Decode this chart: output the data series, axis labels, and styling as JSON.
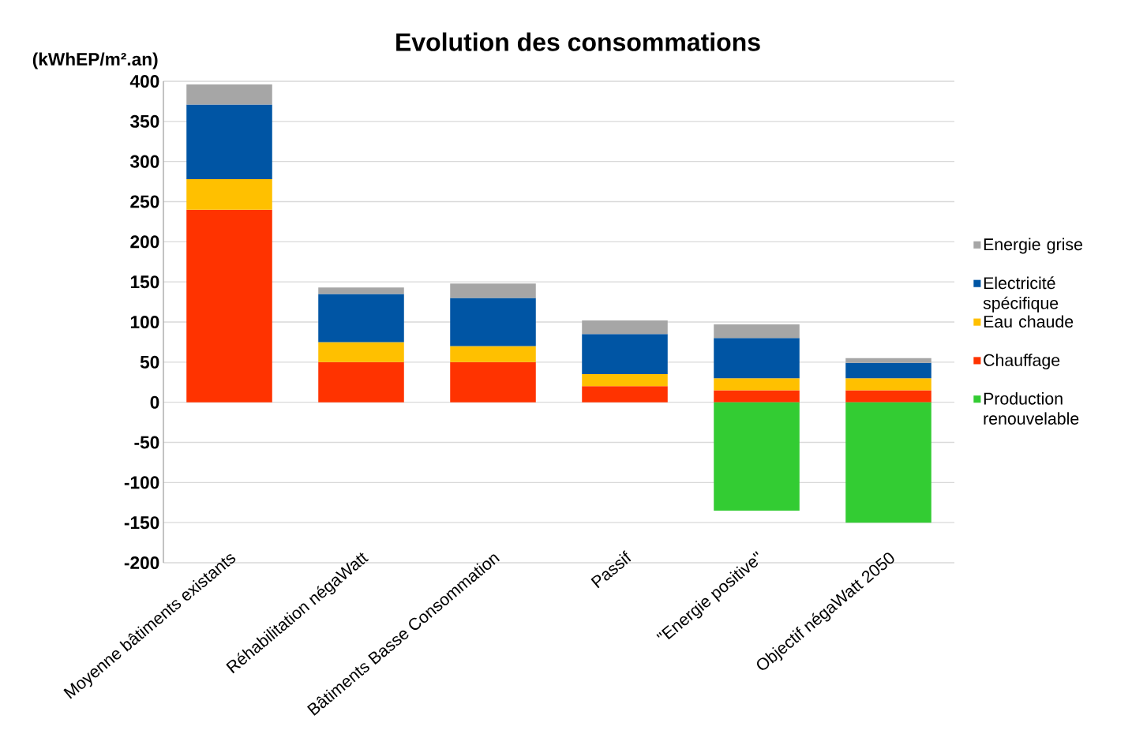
{
  "chart_data": {
    "type": "bar",
    "stacked": true,
    "title": "Evolution des consommations",
    "ylabel": "(kWhEP/m².an)",
    "categories": [
      "Moyenne bâtiments existants",
      "Réhabilitation négaWatt",
      "Bâtiments Basse Consommation",
      "Passif",
      "\"Energie positive\"",
      "Objectif négaWatt 2050"
    ],
    "series": [
      {
        "name": "Chauffage",
        "color": "#ff3300",
        "values": [
          240,
          50,
          50,
          20,
          15,
          15
        ]
      },
      {
        "name": "Eau chaude",
        "color": "#ffc000",
        "values": [
          38,
          25,
          20,
          15,
          15,
          15
        ]
      },
      {
        "name": "Electricité spécifique",
        "color": "#0055a4",
        "values": [
          93,
          60,
          60,
          50,
          50,
          19
        ]
      },
      {
        "name": "Energie grise",
        "color": "#a6a6a6",
        "values": [
          25,
          8,
          18,
          17,
          17,
          6
        ]
      },
      {
        "name": "Production renouvelable",
        "color": "#33cc33",
        "values": [
          0,
          0,
          0,
          0,
          -135,
          -150
        ]
      }
    ],
    "ylim": [
      -200,
      400
    ],
    "yticks": [
      -200,
      -150,
      -100,
      -50,
      0,
      50,
      100,
      150,
      200,
      250,
      300,
      350,
      400
    ],
    "grid": "y",
    "legend": "right"
  }
}
